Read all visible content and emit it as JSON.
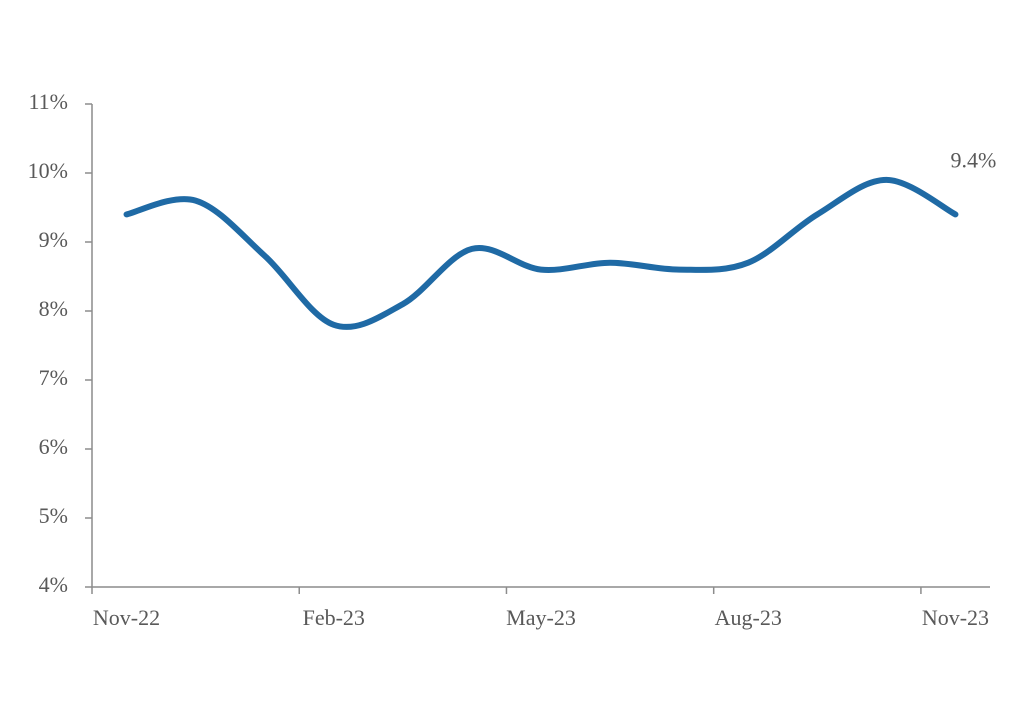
{
  "chart_data": {
    "type": "line",
    "categories": [
      "Nov-22",
      null,
      null,
      "Feb-23",
      null,
      null,
      "May-23",
      null,
      null,
      "Aug-23",
      null,
      null,
      "Nov-23"
    ],
    "series": [
      {
        "color": "#1f6aa5",
        "values": [
          9.4,
          9.6,
          8.8,
          7.8,
          8.1,
          8.9,
          8.6,
          8.7,
          8.6,
          8.7,
          9.4,
          9.9,
          9.4
        ],
        "value_labels": [
          null,
          null,
          null,
          null,
          null,
          null,
          null,
          null,
          null,
          null,
          null,
          null,
          "9.4%"
        ]
      }
    ],
    "ylim": [
      4,
      11
    ],
    "yticks": [
      {
        "value": 4,
        "label": "4%"
      },
      {
        "value": 5,
        "label": "5%"
      },
      {
        "value": 6,
        "label": "6%"
      },
      {
        "value": 7,
        "label": "7%"
      },
      {
        "value": 8,
        "label": "8%"
      },
      {
        "value": 9,
        "label": "9%"
      },
      {
        "value": 10,
        "label": "10%"
      },
      {
        "value": 11,
        "label": "11%"
      }
    ]
  }
}
